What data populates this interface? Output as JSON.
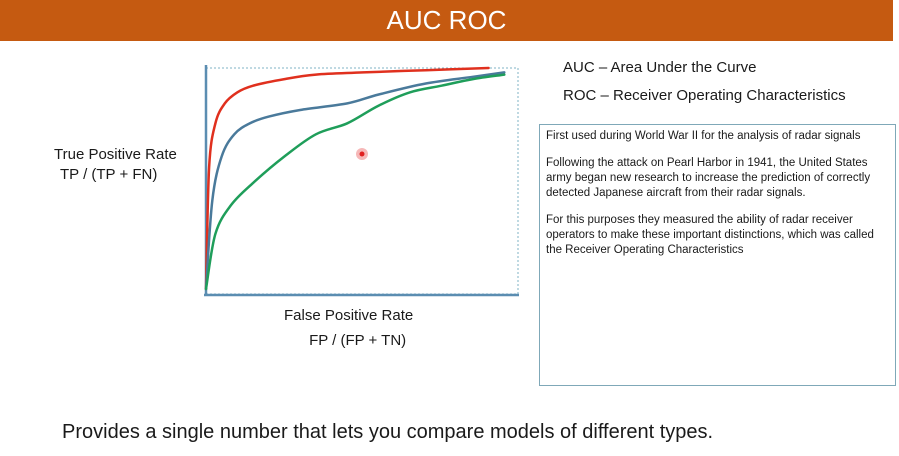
{
  "slide": {
    "title": "AUC ROC",
    "header_color": "#c55a11",
    "y_axis_label": "True Positive Rate",
    "y_axis_formula": "TP / (TP + FN)",
    "x_axis_label": "False Positive Rate",
    "x_axis_formula": "FP / (FP +  TN)",
    "definitions": [
      "AUC – Area Under the Curve",
      "ROC – Receiver Operating Characteristics"
    ],
    "info_paragraphs": [
      "First used during World War II for the analysis of radar signals",
      "Following the attack on Pearl Harbor in 1941, the United States army began new research to increase the prediction of correctly detected Japanese aircraft from their radar signals.",
      "For this purposes they measured the ability of radar receiver operators to make these important distinctions, which was called the Receiver Operating Characteristics"
    ],
    "footer": "Provides a single number that lets you compare models of different types."
  },
  "chart_data": {
    "type": "line",
    "xlabel": "False Positive Rate",
    "ylabel": "True Positive Rate",
    "xlim": [
      0,
      1
    ],
    "ylim": [
      0,
      1
    ],
    "series": [
      {
        "color": "#e0301e",
        "x": [
          0,
          0.01,
          0.03,
          0.06,
          0.1,
          0.15,
          0.25,
          0.35,
          0.5,
          0.7,
          0.9
        ],
        "y": [
          0,
          0.55,
          0.75,
          0.84,
          0.89,
          0.92,
          0.95,
          0.97,
          0.98,
          0.99,
          1.0
        ]
      },
      {
        "color": "#4a7a9b",
        "x": [
          0,
          0.02,
          0.05,
          0.09,
          0.14,
          0.2,
          0.3,
          0.45,
          0.55,
          0.7,
          0.85,
          0.95
        ],
        "y": [
          0,
          0.4,
          0.6,
          0.7,
          0.75,
          0.78,
          0.81,
          0.84,
          0.88,
          0.93,
          0.96,
          0.98
        ]
      },
      {
        "color": "#1f9e5a",
        "x": [
          0,
          0.03,
          0.08,
          0.15,
          0.25,
          0.35,
          0.45,
          0.55,
          0.65,
          0.75,
          0.85,
          0.95
        ],
        "y": [
          0,
          0.25,
          0.38,
          0.48,
          0.6,
          0.7,
          0.75,
          0.83,
          0.89,
          0.92,
          0.95,
          0.97
        ]
      }
    ]
  }
}
